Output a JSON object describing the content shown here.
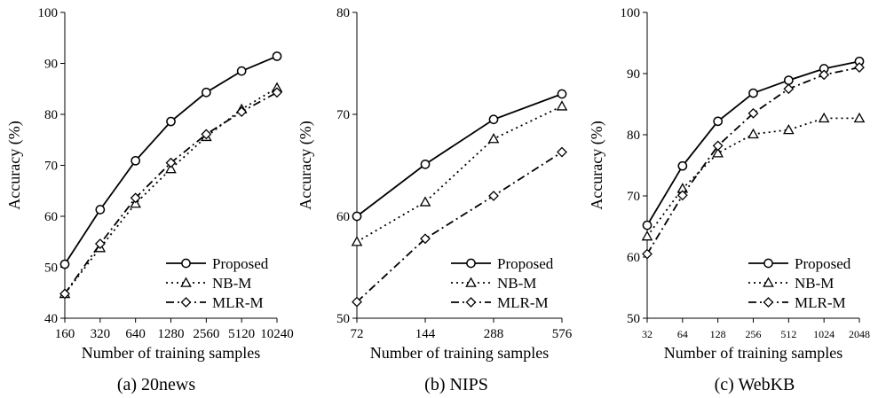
{
  "chart_data": [
    {
      "type": "line",
      "caption": "(a) 20news",
      "xlabel": "Number of training samples",
      "ylabel": "Accuracy (%)",
      "categories": [
        "160",
        "320",
        "640",
        "1280",
        "2560",
        "5120",
        "10240"
      ],
      "ylim": [
        40,
        100
      ],
      "yticks": [
        40,
        50,
        60,
        70,
        80,
        90,
        100
      ],
      "legend_position": "bottom-right",
      "series": [
        {
          "name": "Proposed",
          "values": [
            50.6,
            61.3,
            70.9,
            78.6,
            84.3,
            88.5,
            91.4
          ]
        },
        {
          "name": "NB-M",
          "values": [
            44.8,
            53.8,
            62.5,
            69.3,
            75.6,
            81.0,
            85.2
          ]
        },
        {
          "name": "MLR-M",
          "values": [
            44.8,
            54.6,
            63.6,
            70.5,
            76.1,
            80.5,
            84.3
          ]
        }
      ]
    },
    {
      "type": "line",
      "caption": "(b) NIPS",
      "xlabel": "Number of training samples",
      "ylabel": "Accuracy (%)",
      "categories": [
        "72",
        "144",
        "288",
        "576"
      ],
      "ylim": [
        50,
        80
      ],
      "yticks": [
        50,
        60,
        70,
        80
      ],
      "legend_position": "bottom-right",
      "series": [
        {
          "name": "Proposed",
          "values": [
            60.0,
            65.1,
            69.5,
            72.0
          ]
        },
        {
          "name": "NB-M",
          "values": [
            57.5,
            61.4,
            67.6,
            70.8
          ]
        },
        {
          "name": "MLR-M",
          "values": [
            51.6,
            57.8,
            62.0,
            66.3
          ]
        }
      ]
    },
    {
      "type": "line",
      "caption": "(c) WebKB",
      "xlabel": "Number of training samples",
      "ylabel": "Accuracy (%)",
      "categories": [
        "32",
        "64",
        "128",
        "256",
        "512",
        "1024",
        "2048"
      ],
      "ylim": [
        50,
        100
      ],
      "yticks": [
        50,
        60,
        70,
        80,
        90,
        100
      ],
      "legend_position": "bottom-right",
      "series": [
        {
          "name": "Proposed",
          "values": [
            65.2,
            74.9,
            82.2,
            86.8,
            88.9,
            90.8,
            92.0
          ]
        },
        {
          "name": "NB-M",
          "values": [
            63.4,
            71.2,
            77.0,
            80.1,
            80.8,
            82.7,
            82.7
          ]
        },
        {
          "name": "MLR-M",
          "values": [
            60.5,
            70.1,
            78.2,
            83.5,
            87.5,
            89.8,
            91.0
          ]
        }
      ]
    }
  ]
}
